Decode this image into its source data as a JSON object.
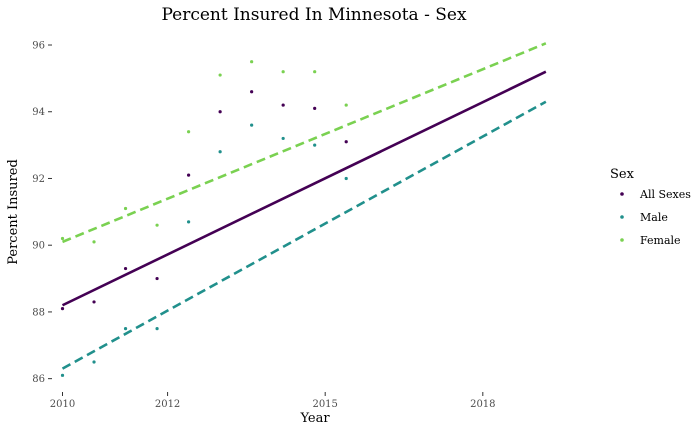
{
  "chart_data": {
    "type": "scatter",
    "title": "Percent Insured In Minnesota - Sex",
    "xlabel": "Year",
    "ylabel": "Percent Insured",
    "xlim": [
      2009.8,
      2019.85
    ],
    "ylim": [
      85.6,
      96.45
    ],
    "x_ticks": [
      2010,
      2012,
      2015,
      2018
    ],
    "x_tick_labels": [
      "2010",
      "2012",
      "2015",
      "2018"
    ],
    "y_ticks": [
      86,
      88,
      90,
      92,
      94,
      96
    ],
    "y_tick_labels": [
      "86",
      "88",
      "90",
      "92",
      "94",
      "96"
    ],
    "grid": false,
    "legend_title": "Sex",
    "legend_position": "right",
    "series": [
      {
        "name": "All Sexes",
        "color": "#440154",
        "line_style": "solid",
        "trend": [
          [
            2010,
            88.2
          ],
          [
            2019.2,
            95.2
          ]
        ],
        "points": [
          [
            2010,
            88.1
          ],
          [
            2010.6,
            88.3
          ],
          [
            2011.2,
            89.3
          ],
          [
            2011.8,
            89.0
          ],
          [
            2012.4,
            92.1
          ],
          [
            2013.0,
            94.0
          ],
          [
            2013.6,
            94.6
          ],
          [
            2014.2,
            94.2
          ],
          [
            2014.8,
            94.1
          ],
          [
            2015.4,
            93.1
          ]
        ]
      },
      {
        "name": "Male",
        "color": "#21908C",
        "line_style": "dashed",
        "trend": [
          [
            2010,
            86.3
          ],
          [
            2019.2,
            94.3
          ]
        ],
        "points": [
          [
            2010,
            86.1
          ],
          [
            2010.6,
            86.5
          ],
          [
            2011.2,
            87.5
          ],
          [
            2011.8,
            87.5
          ],
          [
            2012.4,
            90.7
          ],
          [
            2013.0,
            92.8
          ],
          [
            2013.6,
            93.6
          ],
          [
            2014.2,
            93.2
          ],
          [
            2014.8,
            93.0
          ],
          [
            2015.4,
            92.0
          ]
        ]
      },
      {
        "name": "Female",
        "color": "#7AD151",
        "line_style": "dashed",
        "trend": [
          [
            2010,
            90.1
          ],
          [
            2019.2,
            96.05
          ]
        ],
        "points": [
          [
            2010,
            90.2
          ],
          [
            2010.6,
            90.1
          ],
          [
            2011.2,
            91.1
          ],
          [
            2011.8,
            90.6
          ],
          [
            2012.4,
            93.4
          ],
          [
            2013.0,
            95.1
          ],
          [
            2013.6,
            95.5
          ],
          [
            2014.2,
            95.2
          ],
          [
            2014.8,
            95.2
          ],
          [
            2015.4,
            94.2
          ]
        ]
      }
    ]
  }
}
